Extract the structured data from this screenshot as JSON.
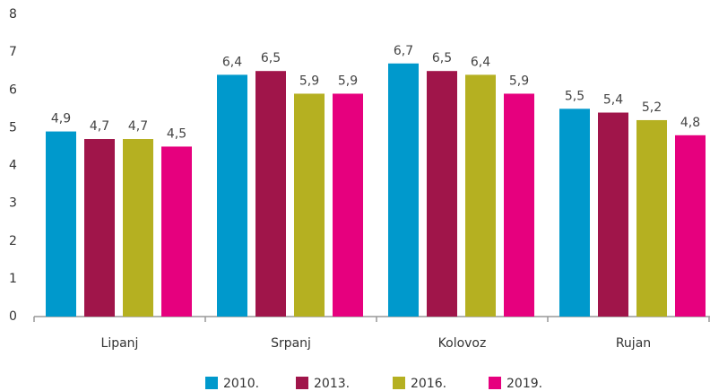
{
  "chart_data": {
    "type": "bar",
    "categories": [
      "Lipanj",
      "Srpanj",
      "Kolovoz",
      "Rujan"
    ],
    "series": [
      {
        "name": "2010.",
        "color": "#0099cc",
        "values": [
          4.9,
          6.4,
          6.7,
          5.5
        ],
        "value_labels": [
          "4,9",
          "6,4",
          "6,7",
          "5,5"
        ]
      },
      {
        "name": "2013.",
        "color": "#a0154a",
        "values": [
          4.7,
          6.5,
          6.5,
          5.4
        ],
        "value_labels": [
          "4,7",
          "6,5",
          "6,5",
          "5,4"
        ]
      },
      {
        "name": "2016.",
        "color": "#b5b021",
        "values": [
          4.7,
          5.9,
          6.4,
          5.2
        ],
        "value_labels": [
          "4,7",
          "5,9",
          "6,4",
          "5,2"
        ]
      },
      {
        "name": "2019.",
        "color": "#e6007e",
        "values": [
          4.5,
          5.9,
          5.9,
          4.8
        ],
        "value_labels": [
          "4,5",
          "5,9",
          "5,9",
          "4,8"
        ]
      }
    ],
    "ylim": [
      0,
      8
    ],
    "yticks": [
      0,
      1,
      2,
      3,
      4,
      5,
      6,
      7,
      8
    ],
    "grid": false,
    "legend": "bottom"
  }
}
